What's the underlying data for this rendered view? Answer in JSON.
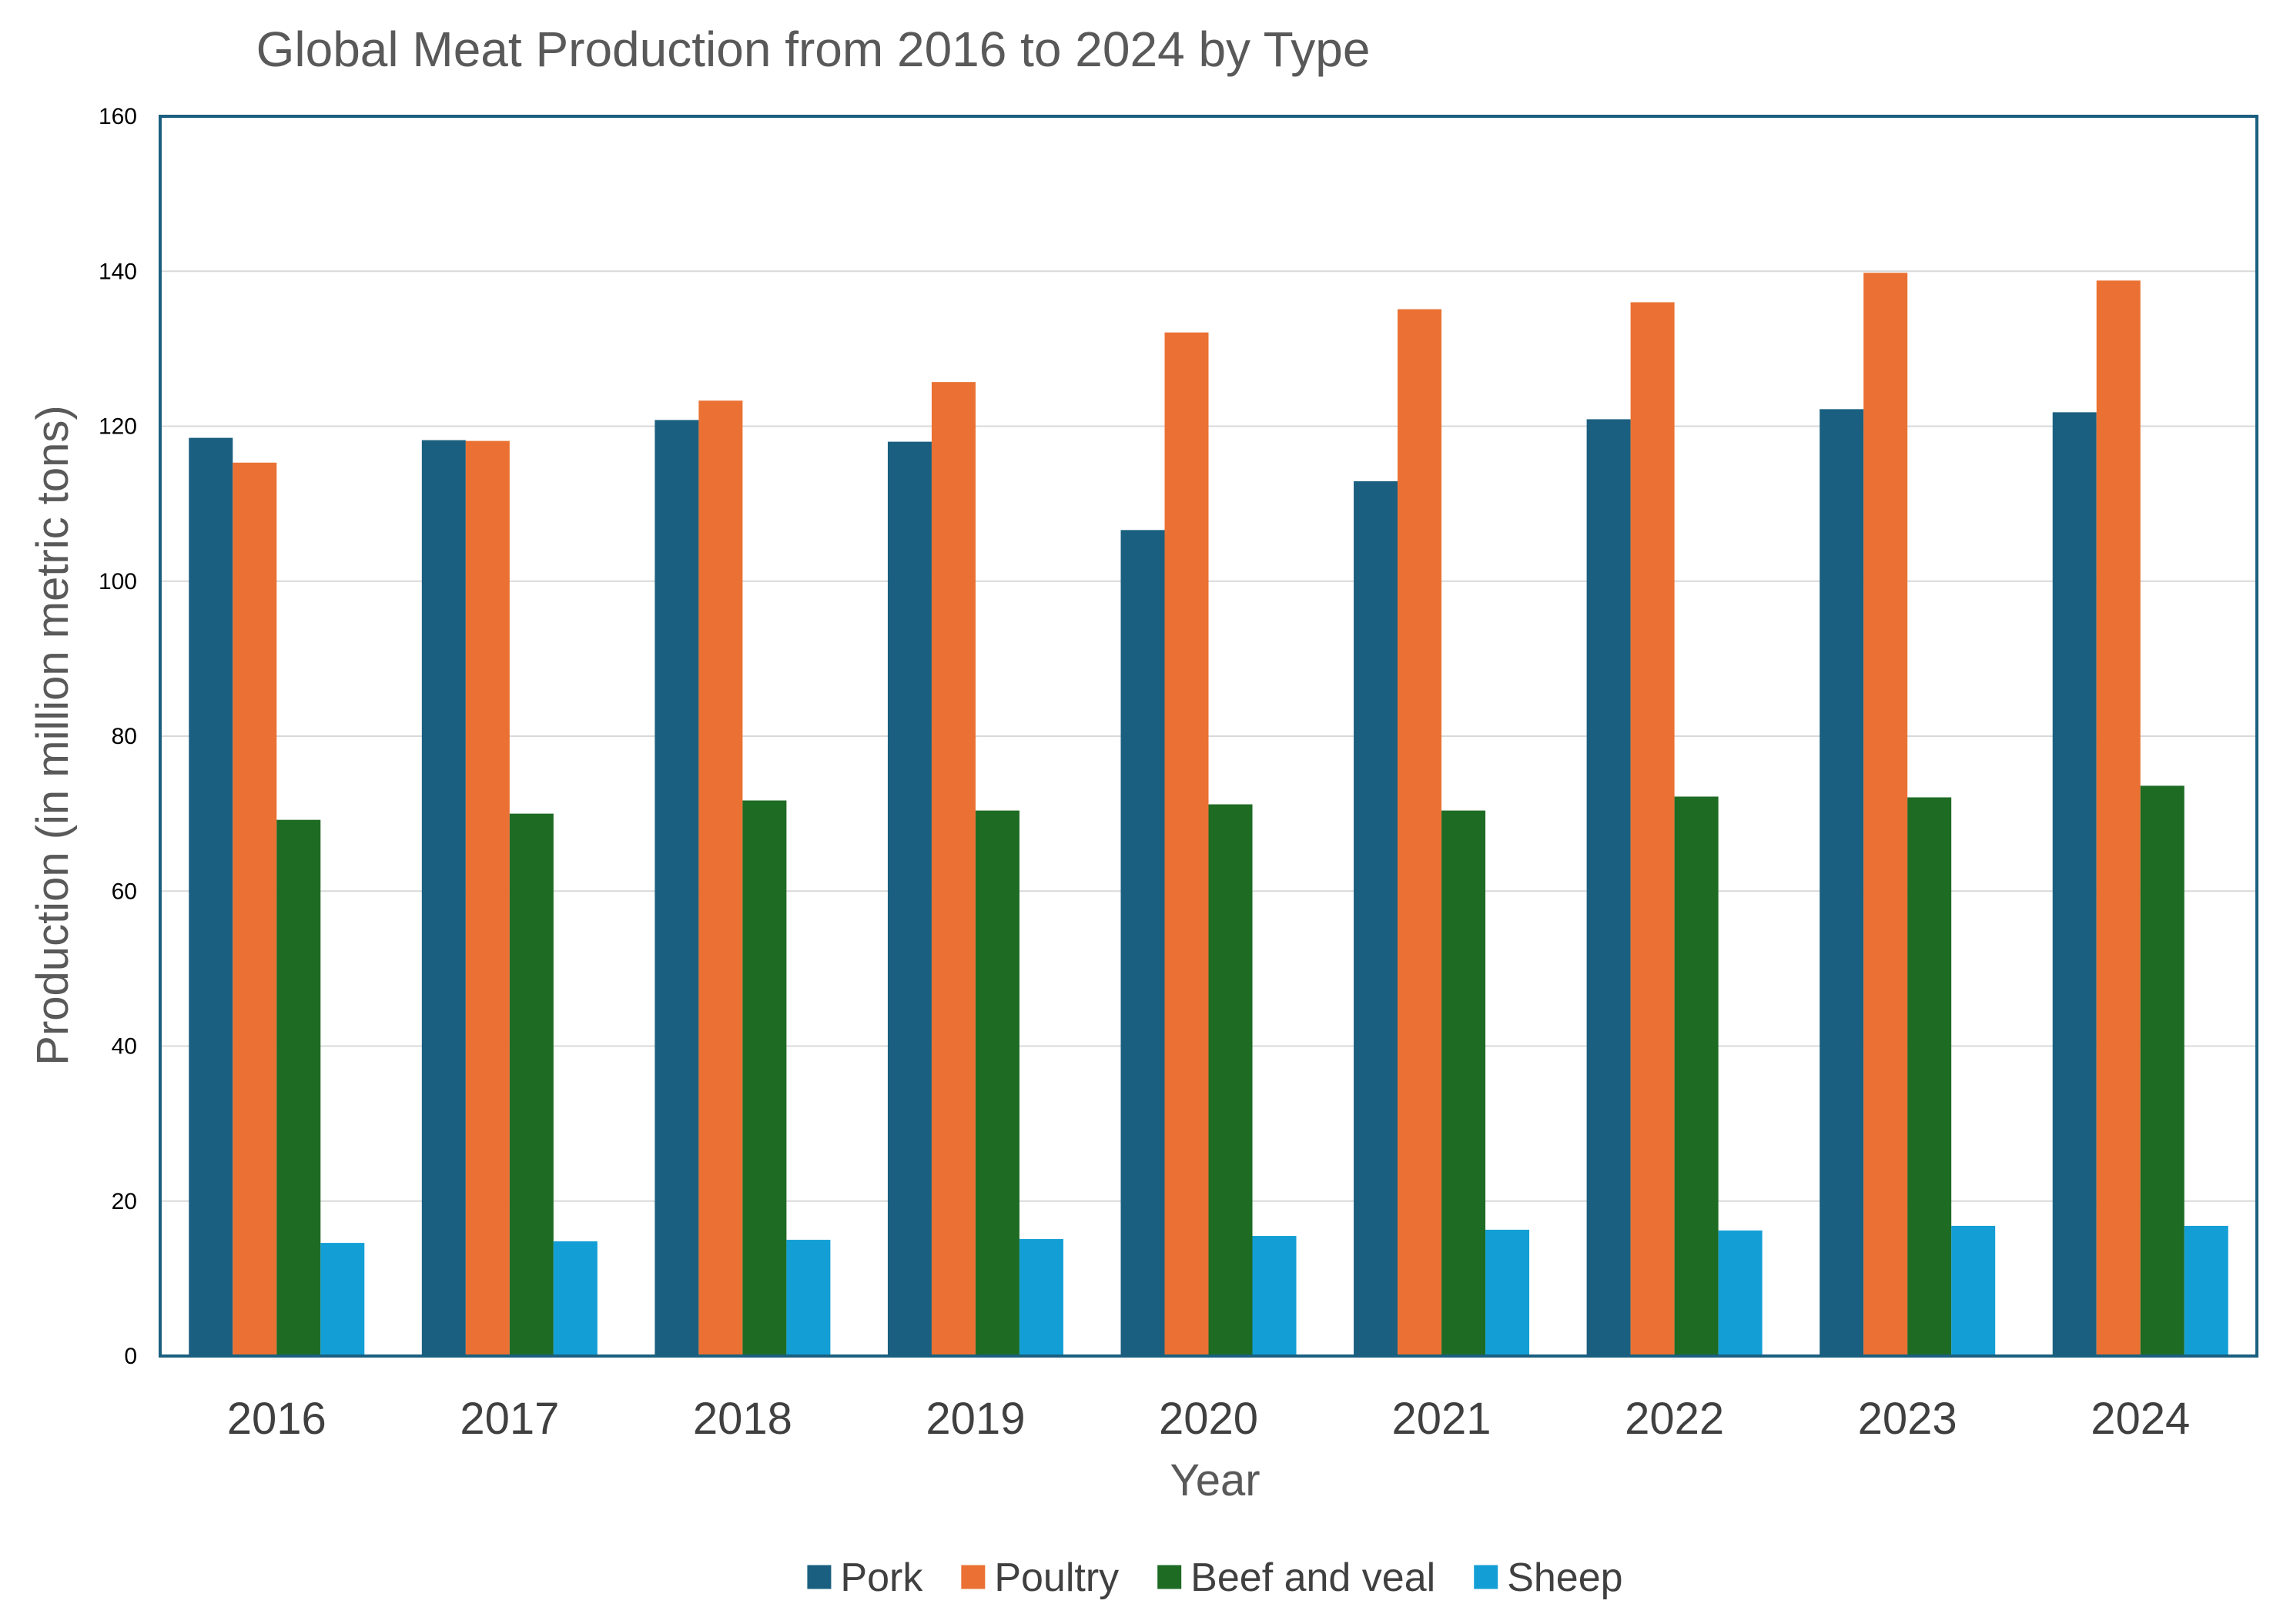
{
  "chart_data": {
    "type": "bar",
    "title": "Global Meat Production from 2016 to 2024 by Type",
    "xlabel": "Year",
    "ylabel": "Production (in million metric tons)",
    "ylim": [
      0,
      160
    ],
    "yticks": [
      0,
      20,
      40,
      60,
      80,
      100,
      120,
      140,
      160
    ],
    "grid": true,
    "legend_position": "bottom",
    "categories": [
      "2016",
      "2017",
      "2018",
      "2019",
      "2020",
      "2021",
      "2022",
      "2023",
      "2024"
    ],
    "series": [
      {
        "name": "Pork",
        "color": "#1A5F7F",
        "values": [
          118.5,
          118.2,
          120.8,
          118.0,
          106.6,
          112.9,
          120.9,
          122.2,
          121.8
        ]
      },
      {
        "name": "Poultry",
        "color": "#EA7133",
        "values": [
          115.3,
          118.1,
          123.3,
          125.7,
          132.1,
          135.1,
          136.0,
          139.8,
          138.8
        ]
      },
      {
        "name": "Beef and veal",
        "color": "#1E6B24",
        "values": [
          69.2,
          70.0,
          71.7,
          70.4,
          71.2,
          70.4,
          72.2,
          72.1,
          73.6
        ]
      },
      {
        "name": "Sheep",
        "color": "#139FD6",
        "values": [
          14.6,
          14.8,
          15.0,
          15.1,
          15.5,
          16.3,
          16.2,
          16.8,
          16.8
        ]
      }
    ],
    "colors": {
      "frame": "#1A5F7F",
      "grid": "#D9D9D9"
    }
  }
}
